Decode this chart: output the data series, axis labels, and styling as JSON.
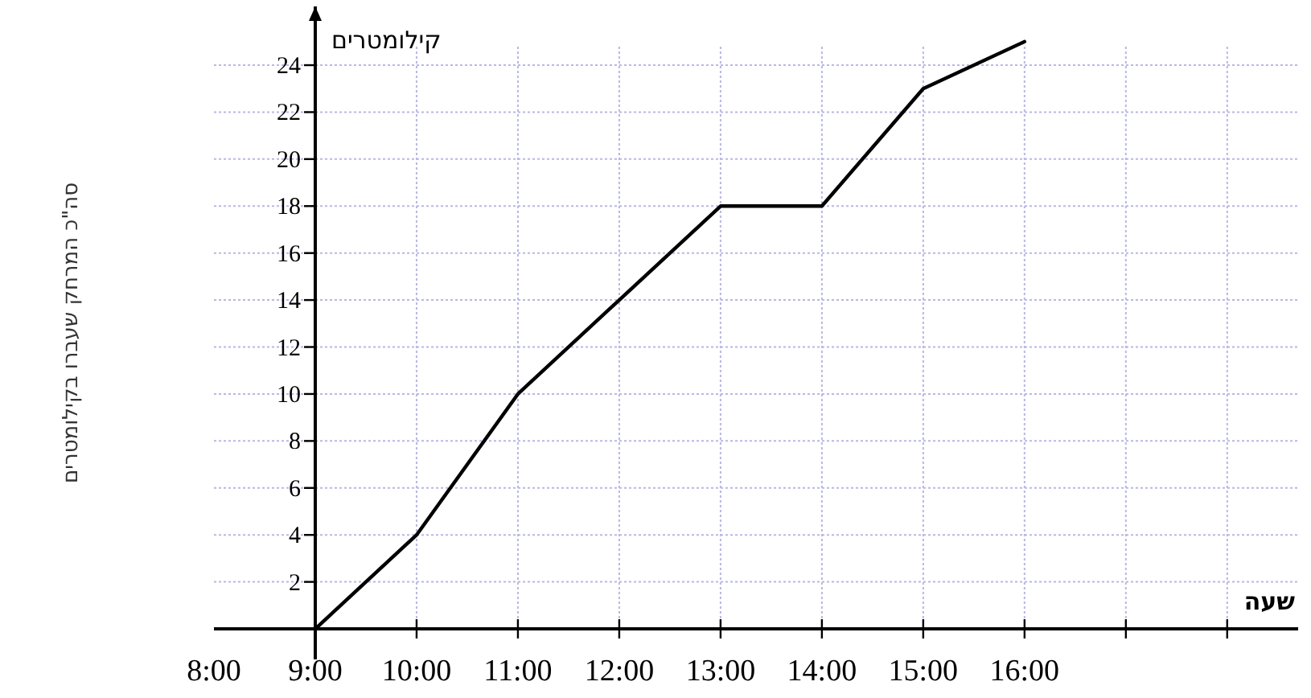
{
  "chart_data": {
    "type": "line",
    "xlabel": "שעה",
    "ylabel": "סה\"כ המרחק שעברו בקילומטרים",
    "annotations": [
      "קילומטרים"
    ],
    "x": [
      9,
      10,
      11,
      12,
      13,
      14,
      15,
      16
    ],
    "series": [
      {
        "color": "#000000",
        "values": [
          0,
          4,
          10,
          14,
          18,
          18,
          23,
          25
        ]
      }
    ],
    "xlim": [
      8,
      18.7
    ],
    "ylim": [
      -1.3,
      26.5
    ],
    "xticks": [
      {
        "value": 8,
        "label": "8:00"
      },
      {
        "value": 9,
        "label": "9:00"
      },
      {
        "value": 10,
        "label": "10:00"
      },
      {
        "value": 11,
        "label": "11:00"
      },
      {
        "value": 12,
        "label": "12:00"
      },
      {
        "value": 13,
        "label": "13:00"
      },
      {
        "value": 14,
        "label": "14:00"
      },
      {
        "value": 15,
        "label": "15:00"
      },
      {
        "value": 16,
        "label": "16:00"
      },
      {
        "value": 17,
        "label": null
      },
      {
        "value": 18,
        "label": null
      }
    ],
    "yticks": [
      2,
      4,
      6,
      8,
      10,
      12,
      14,
      16,
      18,
      20,
      22,
      24
    ],
    "grid": true,
    "marker": "none",
    "line_style": "solid"
  }
}
